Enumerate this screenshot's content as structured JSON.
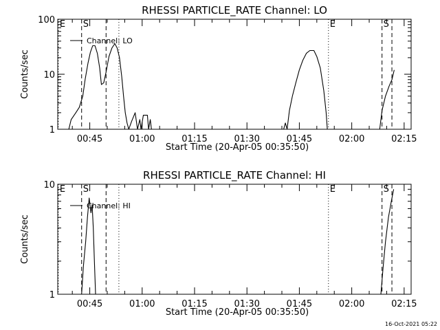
{
  "footer_timestamp": "16-Oct-2021 05:22",
  "chart_data": [
    {
      "type": "line",
      "title": "RHESSI PARTICLE_RATE Channel: LO",
      "xlabel": "Start Time (20-Apr-05 00:35:50)",
      "ylabel": "Counts/sec",
      "y_scale": "log",
      "ylim": [
        1,
        100
      ],
      "xlim": [
        "00:35:50",
        "02:17:00"
      ],
      "y_ticks": [
        "1",
        "10",
        "100"
      ],
      "x_ticks": [
        {
          "t": "00:45",
          "label": "00:45"
        },
        {
          "t": "01:00",
          "label": "01:00"
        },
        {
          "t": "01:15",
          "label": "01:15"
        },
        {
          "t": "01:30",
          "label": "01:30"
        },
        {
          "t": "01:45",
          "label": "01:45"
        },
        {
          "t": "02:00",
          "label": "02:00"
        },
        {
          "t": "02:15",
          "label": "02:15"
        }
      ],
      "legend": {
        "label": "Channel: LO",
        "placement": "top-left"
      },
      "markers": [
        {
          "label": "E",
          "t": "00:36:00",
          "style": "dotted"
        },
        {
          "label": "S",
          "t": "00:42:40",
          "style": "dashed"
        },
        {
          "label": "",
          "t": "00:49:40",
          "style": "dashed"
        },
        {
          "label": "",
          "t": "00:53:20",
          "style": "dotted"
        },
        {
          "label": "E",
          "t": "01:53:20",
          "style": "dotted"
        },
        {
          "label": "S",
          "t": "02:08:40",
          "style": "dashed"
        },
        {
          "label": "",
          "t": "02:11:30",
          "style": "dashed"
        }
      ],
      "series": [
        {
          "name": "Channel: LO",
          "segments": [
            [
              [
                "00:39:00",
                1
              ],
              [
                "00:39:40",
                1.5
              ],
              [
                "00:41:00",
                2
              ],
              [
                "00:42:00",
                2.5
              ],
              [
                "00:43:00",
                4
              ],
              [
                "00:43:40",
                8
              ],
              [
                "00:44:30",
                16
              ],
              [
                "00:45:10",
                25
              ],
              [
                "00:45:50",
                33
              ],
              [
                "00:46:30",
                33
              ],
              [
                "00:47:10",
                24
              ],
              [
                "00:47:50",
                13
              ],
              [
                "00:48:20",
                6.5
              ],
              [
                "00:49:00",
                7
              ],
              [
                "00:49:40",
                11
              ],
              [
                "00:50:30",
                21
              ],
              [
                "00:51:20",
                30
              ],
              [
                "00:52:10",
                36
              ],
              [
                "00:52:50",
                30
              ],
              [
                "00:53:30",
                20
              ],
              [
                "00:54:10",
                9
              ],
              [
                "00:54:40",
                4
              ],
              [
                "00:55:10",
                2
              ],
              [
                "00:55:40",
                1.3
              ],
              [
                "00:56:10",
                1
              ],
              [
                "00:57:00",
                1.4
              ],
              [
                "00:58:00",
                2
              ],
              [
                "00:58:40",
                1
              ],
              [
                "00:59:20",
                1.5
              ],
              [
                "00:59:40",
                1
              ],
              [
                "01:00:20",
                1.8
              ],
              [
                "01:01:30",
                1.8
              ],
              [
                "01:01:50",
                1
              ],
              [
                "01:02:20",
                1.5
              ],
              [
                "01:02:40",
                1
              ]
            ],
            [
              [
                "01:40:30",
                1
              ],
              [
                "01:41:00",
                1.3
              ],
              [
                "01:41:30",
                1
              ],
              [
                "01:42:10",
                2.2
              ],
              [
                "01:43:00",
                4
              ],
              [
                "01:44:00",
                7
              ],
              [
                "01:45:00",
                12
              ],
              [
                "01:46:00",
                18
              ],
              [
                "01:47:00",
                24
              ],
              [
                "01:48:00",
                27
              ],
              [
                "01:49:10",
                27
              ],
              [
                "01:50:00",
                21
              ],
              [
                "01:51:00",
                13
              ],
              [
                "01:52:00",
                5
              ],
              [
                "01:52:40",
                2
              ],
              [
                "01:53:00",
                1
              ]
            ],
            [
              [
                "02:08:00",
                1
              ],
              [
                "02:08:40",
                2.2
              ],
              [
                "02:09:40",
                4
              ],
              [
                "02:10:40",
                6
              ],
              [
                "02:11:30",
                8
              ],
              [
                "02:12:10",
                12
              ]
            ]
          ]
        }
      ]
    },
    {
      "type": "line",
      "title": "RHESSI PARTICLE_RATE Channel: HI",
      "xlabel": "Start Time (20-Apr-05 00:35:50)",
      "ylabel": "Counts/sec",
      "y_scale": "log",
      "ylim": [
        1,
        10
      ],
      "xlim": [
        "00:35:50",
        "02:17:00"
      ],
      "y_ticks": [
        "1",
        "10"
      ],
      "x_ticks": [
        {
          "t": "00:45",
          "label": "00:45"
        },
        {
          "t": "01:00",
          "label": "01:00"
        },
        {
          "t": "01:15",
          "label": "01:15"
        },
        {
          "t": "01:30",
          "label": "01:30"
        },
        {
          "t": "01:45",
          "label": "01:45"
        },
        {
          "t": "02:00",
          "label": "02:00"
        },
        {
          "t": "02:15",
          "label": "02:15"
        }
      ],
      "legend": {
        "label": "Channel: HI",
        "placement": "top-left"
      },
      "markers": [
        {
          "label": "E",
          "t": "00:36:00",
          "style": "dotted"
        },
        {
          "label": "S",
          "t": "00:42:40",
          "style": "dashed"
        },
        {
          "label": "",
          "t": "00:49:40",
          "style": "dashed"
        },
        {
          "label": "",
          "t": "00:53:20",
          "style": "dotted"
        },
        {
          "label": "E",
          "t": "01:53:20",
          "style": "dotted"
        },
        {
          "label": "S",
          "t": "02:08:40",
          "style": "dashed"
        },
        {
          "label": "",
          "t": "02:11:30",
          "style": "dashed"
        }
      ],
      "series": [
        {
          "name": "Channel: HI",
          "segments": [
            [
              [
                "00:42:40",
                1
              ],
              [
                "00:43:10",
                1.8
              ],
              [
                "00:43:50",
                3
              ],
              [
                "00:44:20",
                5
              ],
              [
                "00:44:50",
                7.5
              ],
              [
                "00:45:20",
                5.5
              ],
              [
                "00:45:40",
                6.5
              ],
              [
                "00:46:00",
                4
              ],
              [
                "00:46:20",
                2
              ],
              [
                "00:46:40",
                1
              ]
            ],
            [
              [
                "02:08:20",
                1
              ],
              [
                "02:09:00",
                1.8
              ],
              [
                "02:09:40",
                3
              ],
              [
                "02:10:30",
                5
              ],
              [
                "02:11:20",
                7
              ],
              [
                "02:12:00",
                9
              ]
            ]
          ]
        }
      ]
    }
  ]
}
